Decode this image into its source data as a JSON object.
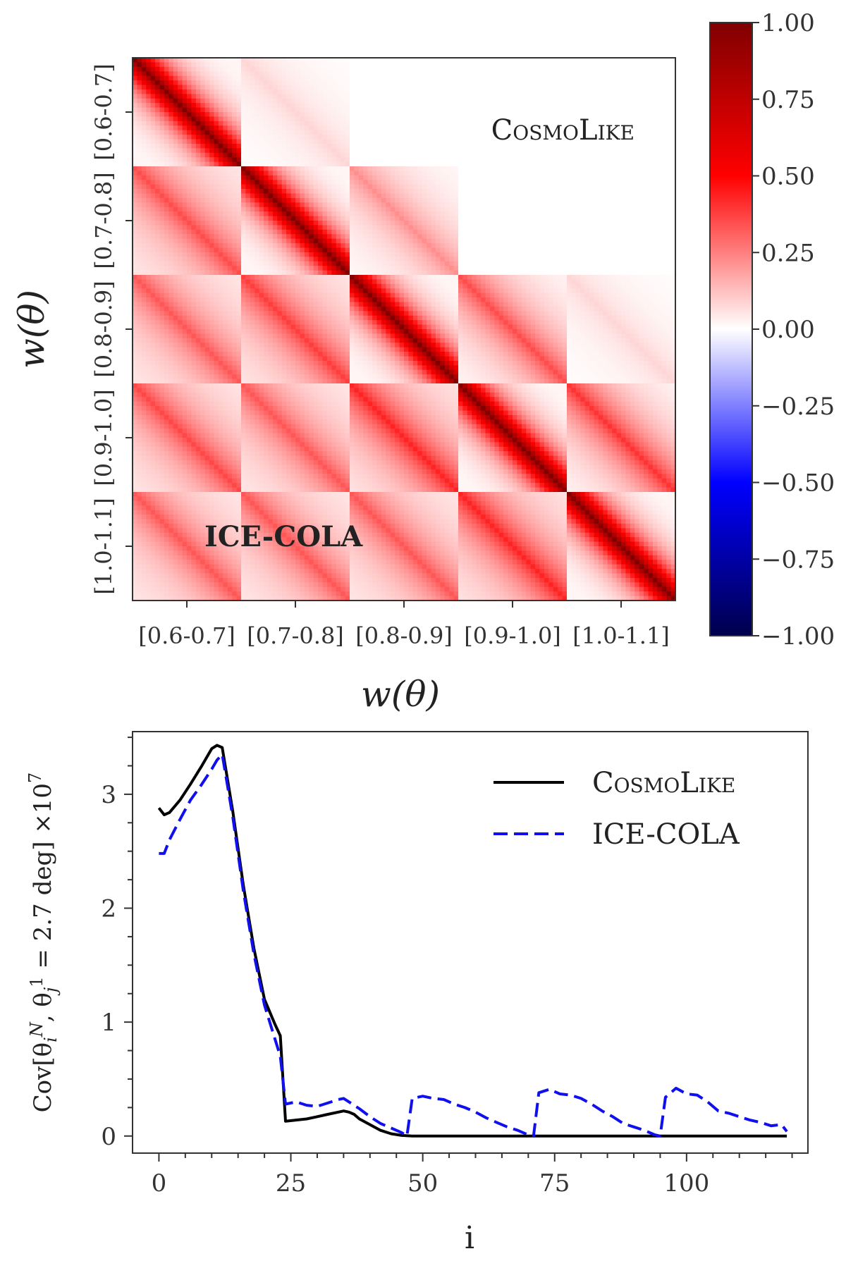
{
  "chart_data": [
    {
      "type": "heatmap",
      "title": "",
      "xlabel": "w(θ)",
      "ylabel": "w(θ)",
      "categories": [
        "[0.6-0.7]",
        "[0.7-0.8]",
        "[0.8-0.9]",
        "[0.9-1.0]",
        "[1.0-1.1]"
      ],
      "bins_per_block": 24,
      "annotations": [
        {
          "text": "CosmoLike",
          "position": "upper triangle"
        },
        {
          "text": "ICE-COLA",
          "position": "lower triangle"
        }
      ],
      "colorbar": {
        "colormap": "seismic",
        "range": [
          -1.0,
          1.0
        ],
        "ticks": [
          "1.00",
          "0.75",
          "0.50",
          "0.25",
          "0.00",
          "−0.25",
          "−0.50",
          "−0.75",
          "−1.00"
        ],
        "tick_values": [
          1.0,
          0.75,
          0.5,
          0.25,
          0.0,
          -0.25,
          -0.5,
          -0.75,
          -1.0
        ]
      },
      "upper_blocks": [
        {
          "row": 0,
          "col": 1,
          "peak": 0.08
        },
        {
          "row": 1,
          "col": 2,
          "peak": 0.22
        },
        {
          "row": 2,
          "col": 3,
          "peak": 0.35
        },
        {
          "row": 2,
          "col": 4,
          "peak": 0.08
        },
        {
          "row": 3,
          "col": 4,
          "peak": 0.4
        }
      ],
      "lower_blocks": [
        {
          "row": 1,
          "col": 0,
          "peak": 0.32
        },
        {
          "row": 2,
          "col": 0,
          "peak": 0.3
        },
        {
          "row": 2,
          "col": 1,
          "peak": 0.35
        },
        {
          "row": 3,
          "col": 0,
          "peak": 0.33
        },
        {
          "row": 3,
          "col": 1,
          "peak": 0.3
        },
        {
          "row": 3,
          "col": 2,
          "peak": 0.4
        },
        {
          "row": 4,
          "col": 0,
          "peak": 0.3
        },
        {
          "row": 4,
          "col": 1,
          "peak": 0.3
        },
        {
          "row": 4,
          "col": 2,
          "peak": 0.3
        },
        {
          "row": 4,
          "col": 3,
          "peak": 0.4
        }
      ]
    },
    {
      "type": "line",
      "title": "",
      "xlabel": "i",
      "ylabel": "Cov[θ_i^N, θ_j^1 = 2.7 deg] ×10^7",
      "xlim": [
        -5,
        123
      ],
      "ylim": [
        -0.15,
        3.55
      ],
      "xticks": [
        0,
        25,
        50,
        75,
        100
      ],
      "yticks": [
        0,
        1,
        2,
        3
      ],
      "legend": "top-right",
      "series": [
        {
          "name": "CosmoLike",
          "color": "#000000",
          "style": "solid",
          "x": [
            0,
            1,
            2,
            4,
            6,
            8,
            10,
            11,
            12,
            14,
            16,
            18,
            20,
            22,
            23,
            24,
            26,
            28,
            30,
            32,
            34,
            35,
            36,
            37,
            38,
            40,
            42,
            44,
            46,
            48,
            50,
            60,
            70,
            80,
            90,
            100,
            110,
            119
          ],
          "values": [
            2.88,
            2.82,
            2.84,
            2.95,
            3.09,
            3.24,
            3.4,
            3.43,
            3.41,
            2.85,
            2.2,
            1.65,
            1.2,
            0.98,
            0.88,
            0.13,
            0.14,
            0.15,
            0.17,
            0.19,
            0.21,
            0.22,
            0.21,
            0.19,
            0.15,
            0.1,
            0.05,
            0.02,
            0.005,
            0.0,
            0.0,
            0.0,
            0.0,
            0.0,
            0.0,
            0.0,
            0.0,
            0.0
          ]
        },
        {
          "name": "ICE-COLA",
          "color": "#1010ee",
          "style": "dashed",
          "x": [
            0,
            1,
            2,
            4,
            6,
            8,
            10,
            11,
            12,
            14,
            16,
            18,
            20,
            22,
            23,
            24,
            26,
            28,
            30,
            32,
            34,
            35,
            36,
            38,
            40,
            42,
            44,
            46,
            47,
            48,
            50,
            52,
            54,
            56,
            58,
            60,
            62,
            64,
            66,
            68,
            70,
            71,
            72,
            74,
            76,
            78,
            80,
            82,
            84,
            86,
            88,
            90,
            92,
            94,
            95,
            96,
            98,
            100,
            102,
            104,
            106,
            108,
            110,
            112,
            114,
            116,
            118,
            119
          ],
          "values": [
            2.48,
            2.48,
            2.6,
            2.78,
            2.95,
            3.08,
            3.22,
            3.3,
            3.35,
            2.8,
            2.15,
            1.6,
            1.15,
            0.85,
            0.7,
            0.28,
            0.3,
            0.27,
            0.26,
            0.29,
            0.32,
            0.33,
            0.3,
            0.24,
            0.17,
            0.11,
            0.07,
            0.03,
            0.0,
            0.33,
            0.35,
            0.33,
            0.32,
            0.28,
            0.25,
            0.21,
            0.16,
            0.12,
            0.08,
            0.05,
            0.01,
            0.0,
            0.38,
            0.41,
            0.37,
            0.36,
            0.33,
            0.28,
            0.22,
            0.17,
            0.11,
            0.08,
            0.05,
            0.01,
            0.0,
            0.34,
            0.42,
            0.37,
            0.36,
            0.3,
            0.22,
            0.2,
            0.17,
            0.14,
            0.12,
            0.09,
            0.1,
            0.04
          ]
        }
      ]
    }
  ]
}
